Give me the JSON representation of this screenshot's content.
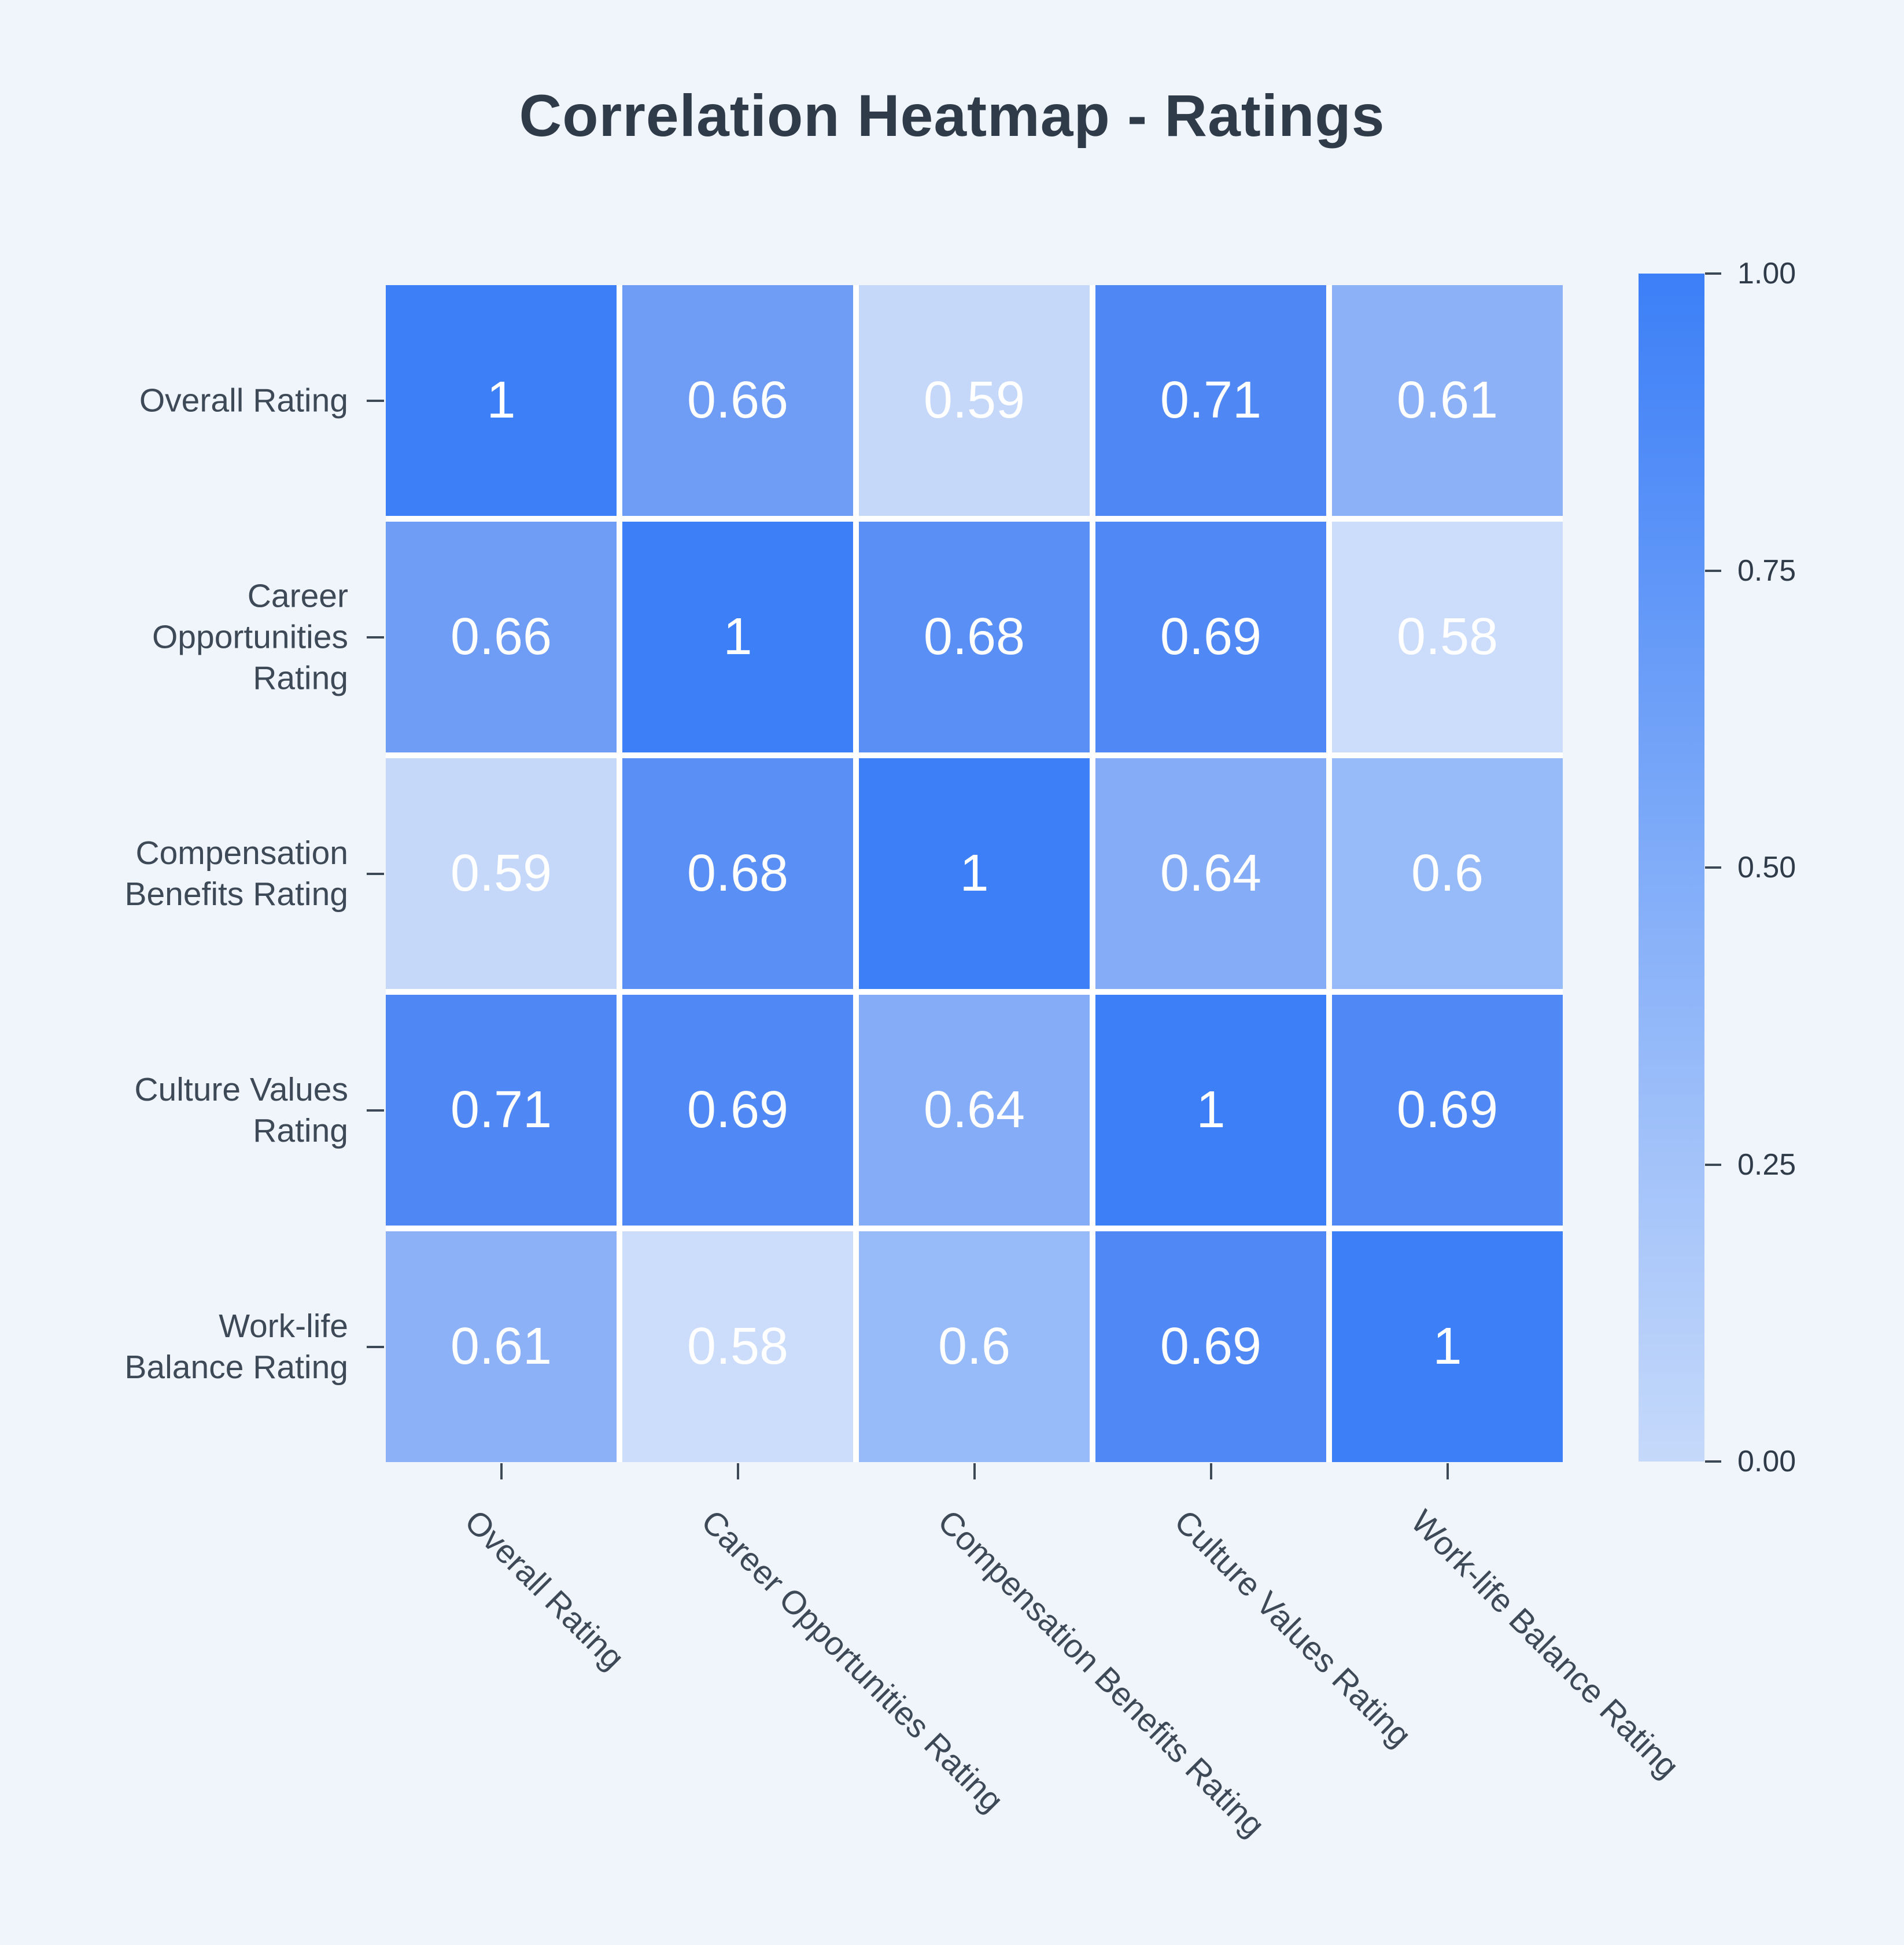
{
  "title": "Correlation Heatmap - Ratings",
  "colors": {
    "background": "#f0f4fb",
    "gap": "#ffffff",
    "title_text": "#2f3b49",
    "axis_text": "#3d4956",
    "tick_line": "#3d4956",
    "cell_text": "#ffffff",
    "colorbar_top": "#3c7ff7",
    "colorbar_bottom": "#c5d9fa"
  },
  "chart_data": {
    "type": "heatmap",
    "title": "Correlation Heatmap - Ratings",
    "categories": [
      "Overall Rating",
      "Career Opportunities Rating",
      "Compensation Benefits Rating",
      "Culture Values Rating",
      "Work-life Balance Rating"
    ],
    "y_label_lines": [
      [
        "Overall Rating"
      ],
      [
        "Career",
        "Opportunities",
        "Rating"
      ],
      [
        "Compensation",
        "Benefits Rating"
      ],
      [
        "Culture Values",
        "Rating"
      ],
      [
        "Work-life",
        "Balance Rating"
      ]
    ],
    "matrix": [
      [
        1,
        0.66,
        0.59,
        0.71,
        0.61
      ],
      [
        0.66,
        1,
        0.68,
        0.69,
        0.58
      ],
      [
        0.59,
        0.68,
        1,
        0.64,
        0.6
      ],
      [
        0.71,
        0.69,
        0.64,
        1,
        0.69
      ],
      [
        0.61,
        0.58,
        0.6,
        0.69,
        1
      ]
    ],
    "value_colors": {
      "1": "#3c7ff7",
      "0.71": "#4f87f5",
      "0.69": "#5089f5",
      "0.68": "#5a90f5",
      "0.66": "#6f9df5",
      "0.64": "#84acf7",
      "0.61": "#8cb1f7",
      "0.6": "#97bbf8",
      "0.59": "#c5d8fa",
      "0.58": "#ccdcfb"
    },
    "colorbar": {
      "ticks": [
        "1.00",
        "0.75",
        "0.50",
        "0.25",
        "0.00"
      ],
      "range": [
        0,
        1
      ],
      "position": "right"
    },
    "grid": false,
    "legend_position": "right-colorbar"
  }
}
